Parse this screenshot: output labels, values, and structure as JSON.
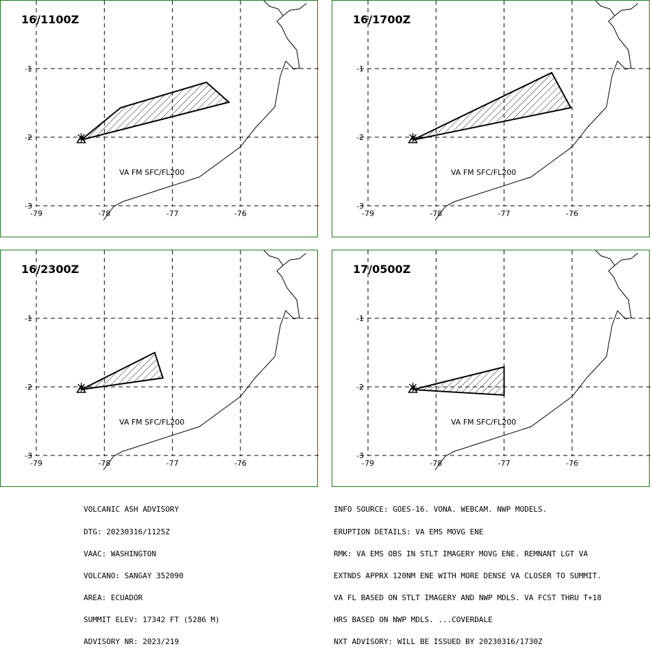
{
  "panels": [
    {
      "title": "16/1100Z",
      "va_label": "VA FM SFC/FL200",
      "polygon": [
        [
          -78.34,
          -2.04
        ],
        [
          -77.76,
          -1.57
        ],
        [
          -76.5,
          -1.2
        ],
        [
          -76.17,
          -1.49
        ],
        [
          -78.34,
          -2.04
        ]
      ]
    },
    {
      "title": "16/1700Z",
      "va_label": "VA FM SFC/FL200",
      "polygon": [
        [
          -78.34,
          -2.04
        ],
        [
          -76.3,
          -1.06
        ],
        [
          -76.02,
          -1.57
        ],
        [
          -78.34,
          -2.04
        ]
      ]
    },
    {
      "title": "16/2300Z",
      "va_label": "VA FM SFC/FL200",
      "polygon": [
        [
          -78.34,
          -2.04
        ],
        [
          -77.26,
          -1.5
        ],
        [
          -77.14,
          -1.87
        ],
        [
          -78.34,
          -2.04
        ]
      ]
    },
    {
      "title": "17/0500Z",
      "va_label": "VA FM SFC/FL200",
      "polygon": [
        [
          -78.34,
          -2.04
        ],
        [
          -77.0,
          -1.71
        ],
        [
          -77.0,
          -2.12
        ],
        [
          -78.34,
          -2.04
        ]
      ]
    }
  ],
  "axes": {
    "lon_ticks": [
      "-79",
      "-78",
      "-77",
      "-76"
    ],
    "lat_ticks": [
      "-1",
      "-2",
      "-3"
    ]
  },
  "volcano": {
    "name": "SANGAY",
    "lon": -78.34,
    "lat": -2.04
  },
  "advisory_left": [
    "VOLCANIC ASH ADVISORY",
    "DTG: 20230316/1125Z",
    "VAAC: WASHINGTON",
    "VOLCANO: SANGAY 352090",
    "AREA: ECUADOR",
    "SUMMIT ELEV: 17342 FT (5286 M)",
    "ADVISORY NR: 2023/219"
  ],
  "advisory_right": [
    "INFO SOURCE: GOES-16. VONA. WEBCAM. NWP MODELS.",
    "ERUPTION DETAILS: VA EMS MOVG ENE",
    "RMK: VA EMS OBS IN STLT IMAGERY MOVG ENE. REMNANT LGT VA",
    "EXTNDS APPRX 120NM ENE WITH MORE DENSE VA CLOSER TO SUMMIT.",
    "VA FL BASED ON STLT IMAGERY AND NWP MDLS. VA FCST THRU T+18",
    "HRS BASED ON NWP MDLS. ...COVERDALE",
    "NXT ADVISORY: WILL BE ISSUED BY 20230316/1730Z"
  ],
  "colors": {
    "border": "#1a7a1a",
    "line": "#000000"
  }
}
